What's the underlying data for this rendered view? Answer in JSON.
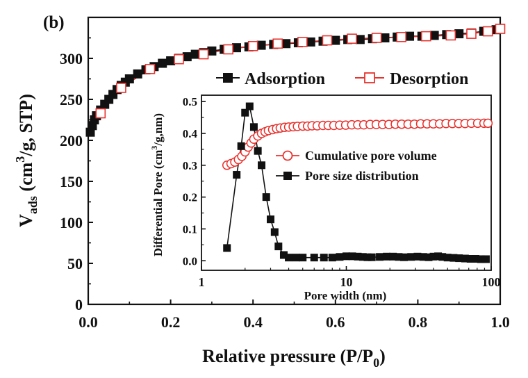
{
  "panel_label": "(b)",
  "chart_data": [
    {
      "type": "line",
      "xlabel": "Relative pressure (P/P0)",
      "ylabel": "Vads (cm3/g, STP)",
      "xlim": [
        0.0,
        1.0
      ],
      "ylim": [
        0,
        350
      ],
      "xticks": [
        "0.0",
        "0.2",
        "0.4",
        "0.6",
        "0.8",
        "1.0"
      ],
      "yticks": [
        "0",
        "50",
        "100",
        "150",
        "200",
        "250",
        "300"
      ],
      "legend_position": "top-right",
      "series": [
        {
          "name": "Adsorption",
          "color": "#111111",
          "marker": "filled-square",
          "x": [
            0.005,
            0.01,
            0.015,
            0.02,
            0.03,
            0.04,
            0.05,
            0.06,
            0.07,
            0.08,
            0.09,
            0.1,
            0.12,
            0.14,
            0.16,
            0.18,
            0.2,
            0.22,
            0.24,
            0.26,
            0.28,
            0.3,
            0.33,
            0.36,
            0.39,
            0.42,
            0.45,
            0.48,
            0.51,
            0.54,
            0.57,
            0.6,
            0.63,
            0.66,
            0.69,
            0.72,
            0.75,
            0.78,
            0.81,
            0.84,
            0.87,
            0.9,
            0.93,
            0.96,
            0.99
          ],
          "y": [
            210,
            218,
            225,
            230,
            237,
            244,
            250,
            256,
            262,
            267,
            271,
            275,
            281,
            286,
            290,
            294,
            297,
            300,
            302,
            305,
            307,
            309,
            311,
            313,
            314,
            316,
            317,
            318,
            319,
            320,
            321,
            322,
            323,
            323,
            324,
            325,
            326,
            327,
            327,
            328,
            329,
            330,
            331,
            333,
            335
          ]
        },
        {
          "name": "Desorption",
          "color": "#e8322e",
          "marker": "open-square",
          "x": [
            0.03,
            0.08,
            0.15,
            0.22,
            0.28,
            0.34,
            0.4,
            0.46,
            0.52,
            0.58,
            0.64,
            0.7,
            0.76,
            0.82,
            0.88,
            0.93,
            0.97,
            1.0
          ],
          "y": [
            233,
            264,
            287,
            299,
            305,
            311,
            315,
            318,
            320,
            322,
            324,
            325,
            326,
            327,
            328,
            330,
            333,
            336
          ]
        }
      ]
    },
    {
      "type": "line",
      "xlabel": "Pore width (nm)",
      "ylabel": "Differential Pore (cm3/g,nm)",
      "x_scale": "log",
      "xlim": [
        1,
        100
      ],
      "ylim": [
        -0.03,
        0.52
      ],
      "xticks": [
        "1",
        "10",
        "100"
      ],
      "yticks": [
        "0.0",
        "0.1",
        "0.2",
        "0.3",
        "0.4",
        "0.5"
      ],
      "legend_position": "center-right",
      "series": [
        {
          "name": "Cumulative pore volume",
          "color": "#e8322e",
          "marker": "open-circle",
          "x": [
            1.5,
            1.6,
            1.7,
            1.8,
            1.9,
            2.0,
            2.1,
            2.2,
            2.3,
            2.45,
            2.6,
            2.75,
            2.9,
            3.1,
            3.3,
            3.5,
            3.75,
            4.0,
            4.3,
            4.6,
            5.0,
            5.4,
            5.8,
            6.3,
            6.9,
            7.5,
            8.2,
            9.0,
            9.9,
            10.9,
            12.0,
            13.2,
            14.6,
            16.1,
            17.8,
            19.7,
            21.8,
            24.1,
            26.7,
            29.5,
            32.6,
            36.1,
            39.9,
            44.1,
            48.8,
            54.0,
            59.7,
            66.0,
            73.0,
            80.7,
            89.2,
            95.0
          ],
          "y": [
            0.3,
            0.305,
            0.31,
            0.318,
            0.328,
            0.342,
            0.357,
            0.37,
            0.382,
            0.392,
            0.4,
            0.405,
            0.409,
            0.412,
            0.415,
            0.417,
            0.419,
            0.42,
            0.421,
            0.422,
            0.423,
            0.423,
            0.424,
            0.424,
            0.425,
            0.425,
            0.425,
            0.426,
            0.426,
            0.427,
            0.427,
            0.427,
            0.428,
            0.428,
            0.428,
            0.428,
            0.429,
            0.429,
            0.429,
            0.429,
            0.43,
            0.43,
            0.43,
            0.43,
            0.431,
            0.431,
            0.431,
            0.431,
            0.432,
            0.432,
            0.432,
            0.432
          ]
        },
        {
          "name": "Pore size distribution",
          "color": "#111111",
          "marker": "filled-square",
          "x": [
            1.5,
            1.75,
            1.88,
            2.0,
            2.15,
            2.3,
            2.45,
            2.6,
            2.8,
            3.0,
            3.2,
            3.4,
            3.7,
            4.0,
            4.5,
            5.0,
            6.0,
            7.0,
            8.0,
            9.0,
            10.0,
            11.0,
            12.0,
            13.0,
            14.0,
            15.0,
            17.0,
            19.0,
            21.0,
            23.0,
            25.0,
            28.0,
            31.0,
            34.0,
            37.0,
            40.0,
            43.0,
            46.0,
            50.0,
            55.0,
            60.0,
            66.0,
            72.0,
            78.0,
            85.0,
            92.0
          ],
          "y": [
            0.04,
            0.27,
            0.36,
            0.465,
            0.485,
            0.42,
            0.345,
            0.3,
            0.2,
            0.13,
            0.09,
            0.045,
            0.018,
            0.01,
            0.01,
            0.01,
            0.01,
            0.01,
            0.01,
            0.012,
            0.014,
            0.014,
            0.013,
            0.012,
            0.011,
            0.011,
            0.012,
            0.013,
            0.013,
            0.012,
            0.011,
            0.012,
            0.013,
            0.012,
            0.011,
            0.013,
            0.014,
            0.012,
            0.01,
            0.009,
            0.008,
            0.007,
            0.006,
            0.006,
            0.005,
            0.005
          ]
        }
      ]
    }
  ]
}
